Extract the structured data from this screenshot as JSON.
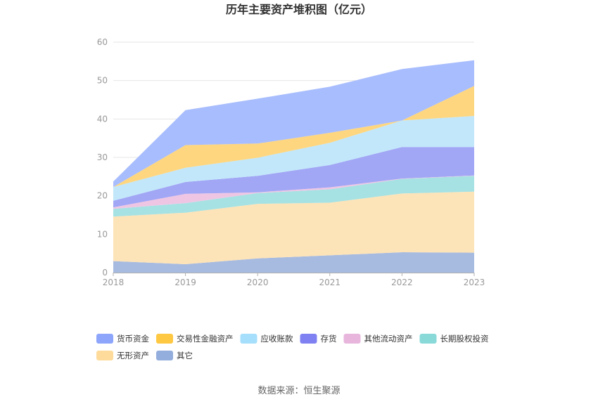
{
  "chart_data": {
    "type": "area",
    "stacked": true,
    "title": "历年主要资产堆积图（亿元）",
    "xlabel": "",
    "ylabel": "",
    "x": [
      "2018",
      "2019",
      "2020",
      "2021",
      "2022",
      "2023"
    ],
    "ylim": [
      0,
      60
    ],
    "yticks": [
      "0",
      "10",
      "20",
      "30",
      "40",
      "50",
      "60"
    ],
    "grid": true,
    "legend_position": "bottom",
    "series": [
      {
        "name": "其它",
        "color": "#A7BBE0",
        "values": [
          3.0,
          2.2,
          3.7,
          4.5,
          5.3,
          5.2
        ]
      },
      {
        "name": "无形资产",
        "color": "#FDE3B8",
        "values": [
          11.6,
          13.4,
          14.2,
          13.7,
          15.3,
          15.9
        ]
      },
      {
        "name": "长期股权投资",
        "color": "#A6E2E3",
        "values": [
          2.0,
          2.5,
          2.8,
          3.5,
          3.8,
          4.1
        ]
      },
      {
        "name": "其他流动资产",
        "color": "#EEC6E4",
        "values": [
          0.4,
          2.4,
          0.2,
          0.5,
          0.1,
          0.1
        ]
      },
      {
        "name": "存货",
        "color": "#A1A6F5",
        "values": [
          1.7,
          3.1,
          4.3,
          5.8,
          8.2,
          7.4
        ]
      },
      {
        "name": "应收账款",
        "color": "#C2E7FA",
        "values": [
          3.6,
          3.7,
          4.7,
          5.8,
          6.9,
          8.1
        ]
      },
      {
        "name": "交易性金融资产",
        "color": "#FED67F",
        "values": [
          0.0,
          5.9,
          3.7,
          2.6,
          0.0,
          7.8
        ]
      },
      {
        "name": "货币资金",
        "color": "#A8BDFD",
        "values": [
          1.4,
          9.1,
          11.7,
          12.0,
          13.4,
          6.7
        ]
      }
    ],
    "legend": [
      {
        "name": "货币资金",
        "color": "#8DA6FC"
      },
      {
        "name": "交易性金融资产",
        "color": "#FFC843"
      },
      {
        "name": "应收账款",
        "color": "#A6DFFB"
      },
      {
        "name": "存货",
        "color": "#7F81F2"
      },
      {
        "name": "其他流动资产",
        "color": "#E8B6DD"
      },
      {
        "name": "长期股权投资",
        "color": "#89D9D9"
      },
      {
        "name": "无形资产",
        "color": "#FFDB9B"
      },
      {
        "name": "其它",
        "color": "#93AEDC"
      }
    ],
    "source": "数据来源：恒生聚源"
  }
}
